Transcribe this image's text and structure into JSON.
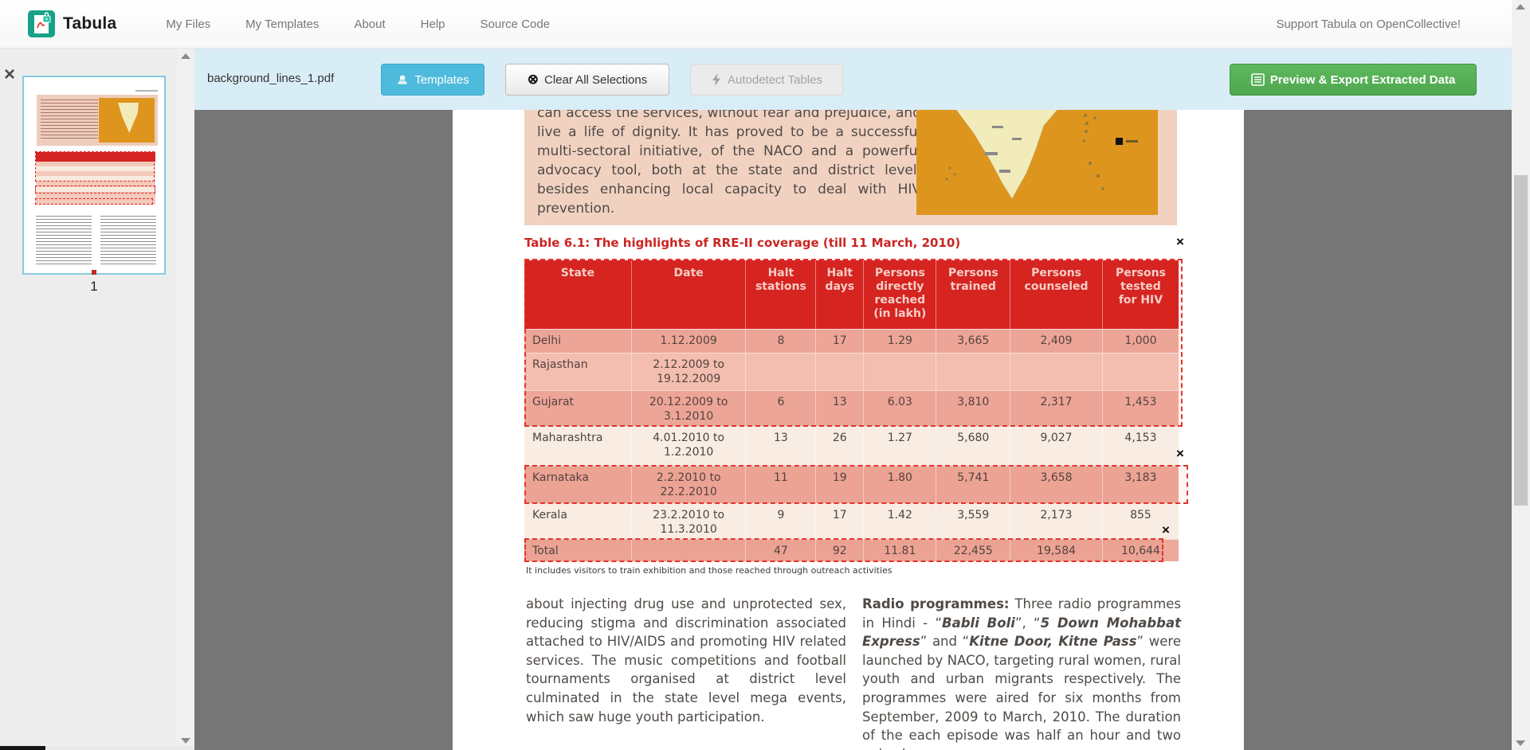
{
  "navbar": {
    "brand": "Tabula",
    "links": [
      "My Files",
      "My Templates",
      "About",
      "Help",
      "Source Code"
    ],
    "support": "Support Tabula on OpenCollective!"
  },
  "toolbar": {
    "filename": "background_lines_1.pdf",
    "templates_label": "Templates",
    "clear_label": "Clear All Selections",
    "autodetect_label": "Autodetect Tables",
    "export_label": "Preview & Export Extracted Data"
  },
  "sidebar": {
    "page_number": "1"
  },
  "ui": {
    "close_x": "×",
    "clear_glyph": "⊗"
  },
  "pdf": {
    "intro_paragraph": "can access the services, without fear and prejudice, and live a life of dignity. It has proved to be a successful multi-sectoral initiative, of the NACO and a powerful advocacy tool, both at the state and district level, besides enhancing local capacity to deal with HIV prevention.",
    "table": {
      "title": "Table 6.1: The highlights of RRE-II coverage (till 11 March, 2010)",
      "columns": [
        "State",
        "Date",
        "Halt\nstations",
        "Halt\ndays",
        "Persons\ndirectly\nreached\n(in lakh)",
        "Persons\ntrained",
        "Persons\ncounseled",
        "Persons\ntested\nfor HIV"
      ],
      "rows": [
        {
          "cells": [
            "Delhi",
            "1.12.2009",
            "8",
            "17",
            "1.29",
            "3,665",
            "2,409",
            "1,000"
          ]
        },
        {
          "cells": [
            "Rajasthan",
            "2.12.2009 to\n19.12.2009",
            "",
            "",
            "",
            "",
            "",
            ""
          ]
        },
        {
          "cells": [
            "Gujarat",
            "20.12.2009 to\n3.1.2010",
            "6",
            "13",
            "6.03",
            "3,810",
            "2,317",
            "1,453"
          ]
        },
        {
          "cells": [
            "Maharashtra",
            "4.01.2010 to\n1.2.2010",
            "13",
            "26",
            "1.27",
            "5,680",
            "9,027",
            "4,153"
          ]
        },
        {
          "cells": [
            "Karnataka",
            "2.2.2010 to\n22.2.2010",
            "11",
            "19",
            "1.80",
            "5,741",
            "3,658",
            "3,183"
          ]
        },
        {
          "cells": [
            "Kerala",
            "23.2.2010 to\n11.3.2010",
            "9",
            "17",
            "1.42",
            "3,559",
            "2,173",
            "855"
          ]
        },
        {
          "cells": [
            "Total",
            "",
            "47",
            "92",
            "11.81",
            "22,455",
            "19,584",
            "10,644"
          ]
        }
      ],
      "footnote": "It includes visitors to train exhibition and those reached through outreach activities"
    },
    "left_paragraph": "about injecting drug use and unprotected sex, reducing stigma and discrimination associated attached to HIV/AIDS and promoting HIV related services. The music competitions and football tournaments organised at district level culminated in the state level mega events, which saw huge youth participation.",
    "right_paragraph_segments": [
      {
        "text": "Radio programmes:",
        "bold": true
      },
      {
        "text": " Three radio programmes in Hindi - “"
      },
      {
        "text": "Babli Boli",
        "italic": true
      },
      {
        "text": "”, “"
      },
      {
        "text": "5 Down Mohabbat Express",
        "italic": true
      },
      {
        "text": "” and “"
      },
      {
        "text": "Kitne Door, Kitne Pass",
        "italic": true
      },
      {
        "text": "” were launched by NACO, targeting rural women, rural youth and urban migrants respectively. The programmes were aired for six months from September, 2009 to March, 2010. The duration of the each episode was half an hour and two episodes"
      }
    ]
  },
  "colors": {
    "toolbar_bg": "#d9edf7",
    "templates_btn": "#4fbbdc",
    "export_btn": "#55b155",
    "table_header_red": "#d52321",
    "selection_red": "#e4322b",
    "pink_block": "#f1d2c1",
    "map_orange": "#de951d"
  }
}
